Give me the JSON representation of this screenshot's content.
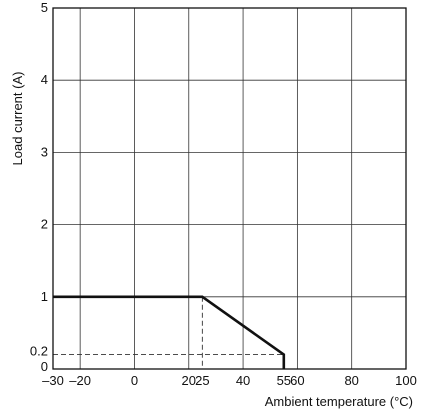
{
  "chart_data": {
    "type": "line",
    "xlabel": "Ambient temperature (°C)",
    "ylabel": "Load current (A)",
    "xlim": [
      -30,
      100
    ],
    "ylim": [
      0,
      5
    ],
    "x_ticks": [
      {
        "value": -30,
        "label": "–30"
      },
      {
        "value": -20,
        "label": "–20"
      },
      {
        "value": 0,
        "label": "0"
      },
      {
        "value": 20,
        "label": "20"
      },
      {
        "value": 25,
        "label": "25"
      },
      {
        "value": 40,
        "label": "40"
      },
      {
        "value": 55,
        "label": "55"
      },
      {
        "value": 60,
        "label": "60"
      },
      {
        "value": 80,
        "label": "80"
      },
      {
        "value": 100,
        "label": "100"
      }
    ],
    "y_ticks": [
      {
        "value": 0,
        "label": "0"
      },
      {
        "value": 0.2,
        "label": "0.2"
      },
      {
        "value": 1,
        "label": "1"
      },
      {
        "value": 2,
        "label": "2"
      },
      {
        "value": 3,
        "label": "3"
      },
      {
        "value": 4,
        "label": "4"
      },
      {
        "value": 5,
        "label": "5"
      }
    ],
    "x_gridlines": [
      -20,
      0,
      20,
      40,
      60,
      80,
      100
    ],
    "y_gridlines": [
      1,
      2,
      3,
      4,
      5
    ],
    "grid": true,
    "series": [
      {
        "style": "solid-thick",
        "color": "#111111",
        "points": [
          [
            -30,
            1
          ],
          [
            25,
            1
          ],
          [
            55,
            0.2
          ],
          [
            55,
            0
          ]
        ]
      }
    ],
    "reference_lines": [
      {
        "style": "dashed",
        "points": [
          [
            25,
            1
          ],
          [
            25,
            0
          ]
        ]
      },
      {
        "style": "dashed",
        "points": [
          [
            -30,
            0.2
          ],
          [
            55,
            0.2
          ]
        ]
      }
    ]
  }
}
